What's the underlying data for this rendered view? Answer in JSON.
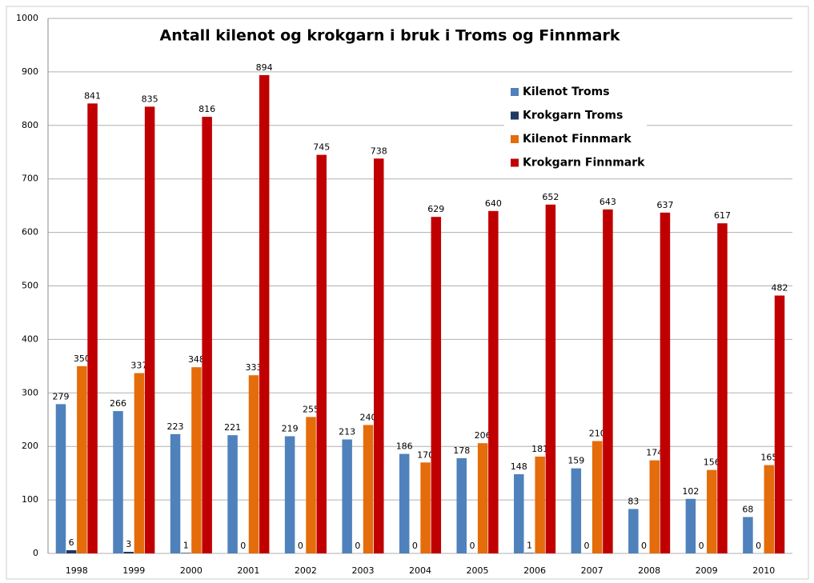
{
  "chart_data": {
    "type": "bar",
    "title": "Antall kilenot og krokgarn i bruk i  Troms og Finnmark",
    "categories": [
      "1998",
      "1999",
      "2000",
      "2001",
      "2002",
      "2003",
      "2004",
      "2005",
      "2006",
      "2007",
      "2008",
      "2009",
      "2010"
    ],
    "series": [
      {
        "name": "Kilenot Troms",
        "color": "#4f81bd",
        "values": [
          279,
          266,
          223,
          221,
          219,
          213,
          186,
          178,
          148,
          159,
          83,
          102,
          68
        ]
      },
      {
        "name": "Krokgarn Troms",
        "color": "#1f3864",
        "values": [
          6,
          3,
          1,
          0,
          0,
          0,
          0,
          0,
          1,
          0,
          0,
          0,
          0
        ]
      },
      {
        "name": "Kilenot Finnmark",
        "color": "#e46c0a",
        "values": [
          350,
          337,
          348,
          333,
          255,
          240,
          170,
          206,
          181,
          210,
          174,
          156,
          165
        ]
      },
      {
        "name": "Krokgarn Finnmark",
        "color": "#c00000",
        "values": [
          841,
          835,
          816,
          894,
          745,
          738,
          629,
          640,
          652,
          643,
          637,
          617,
          482
        ]
      }
    ],
    "ylim": [
      0,
      1000
    ],
    "yticks": [
      0,
      100,
      200,
      300,
      400,
      500,
      600,
      700,
      800,
      900,
      1000
    ],
    "grid": true,
    "legend": "top-right"
  }
}
